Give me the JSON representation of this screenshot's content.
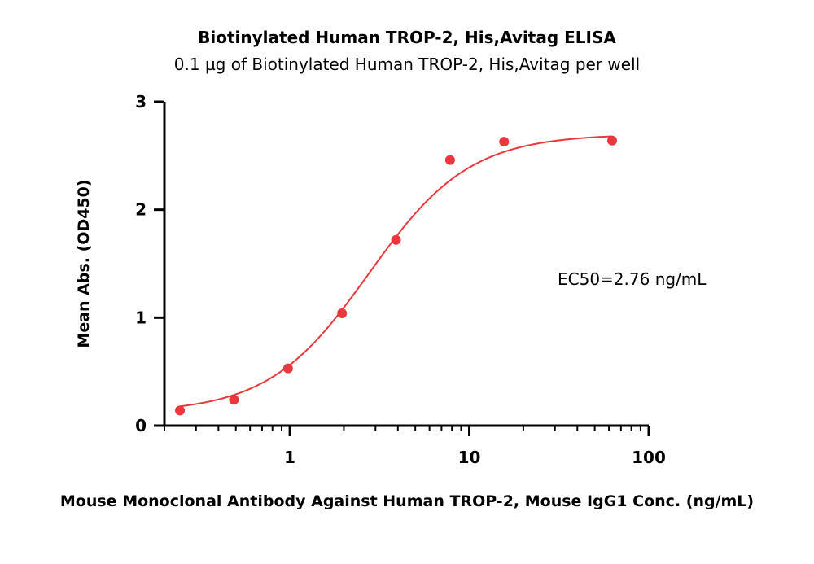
{
  "chart_data": {
    "type": "scatter",
    "title": "Biotinylated Human TROP-2, His,Avitag ELISA",
    "subtitle": "0.1 µg of Biotinylated Human TROP-2, His,Avitag per well",
    "xlabel": "Mouse Monoclonal Antibody Against Human TROP-2, Mouse IgG1 Conc. (ng/mL)",
    "ylabel": "Mean Abs. (OD450)",
    "xscale": "log",
    "xlim": [
      0.2,
      100
    ],
    "ylim": [
      0,
      3
    ],
    "xticks": [
      1,
      10,
      100
    ],
    "xtick_labels": [
      "1",
      "10",
      "100"
    ],
    "yticks": [
      0,
      1,
      2,
      3
    ],
    "ytick_labels": [
      "0",
      "1",
      "2",
      "3"
    ],
    "grid": false,
    "annotation": "EC50=2.76 ng/mL",
    "color": "#e8383d",
    "series": [
      {
        "x": [
          0.244,
          0.488,
          0.977,
          1.953,
          3.906,
          7.813,
          15.625,
          62.5
        ],
        "y": [
          0.14,
          0.24,
          0.53,
          1.04,
          1.72,
          2.46,
          2.63,
          2.64
        ]
      }
    ],
    "fit": {
      "model": "4PL",
      "bottom": 0.12,
      "top": 2.7,
      "ec50": 2.76,
      "hill": 1.55,
      "x_range": [
        0.244,
        62.5
      ]
    }
  }
}
